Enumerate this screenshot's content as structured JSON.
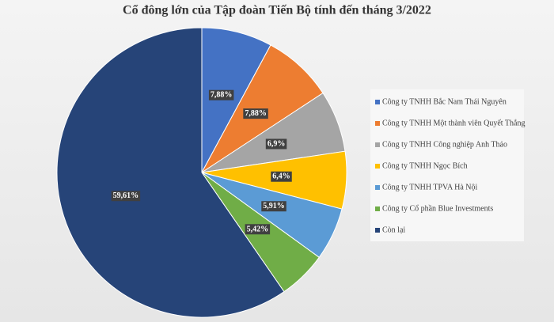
{
  "chart_data": {
    "type": "pie",
    "title": "Cổ đông lớn của Tập đoàn Tiến Bộ tính đến tháng 3/2022",
    "categories": [
      "Công ty TNHH Bắc Nam Thái Nguyên",
      "Công ty TNHH Một thành viên Quyết Thắng",
      "Công ty TNHH Công nghiệp Anh Thảo",
      "Công ty TNHH Ngọc Bích",
      "Công ty TNHH TPVA Hà Nội",
      "Công ty Cổ phần Blue Investments",
      "Còn lại"
    ],
    "values": [
      7.88,
      7.88,
      6.9,
      6.4,
      5.91,
      5.42,
      59.61
    ],
    "value_labels": [
      "7,88%",
      "7,88%",
      "6,9%",
      "6,4%",
      "5,91%",
      "5,42%",
      "59,61%"
    ],
    "colors": [
      "#4472c4",
      "#ed7d31",
      "#a5a5a5",
      "#ffc000",
      "#5b9bd5",
      "#70ad47",
      "#264478"
    ],
    "legend": "right"
  }
}
